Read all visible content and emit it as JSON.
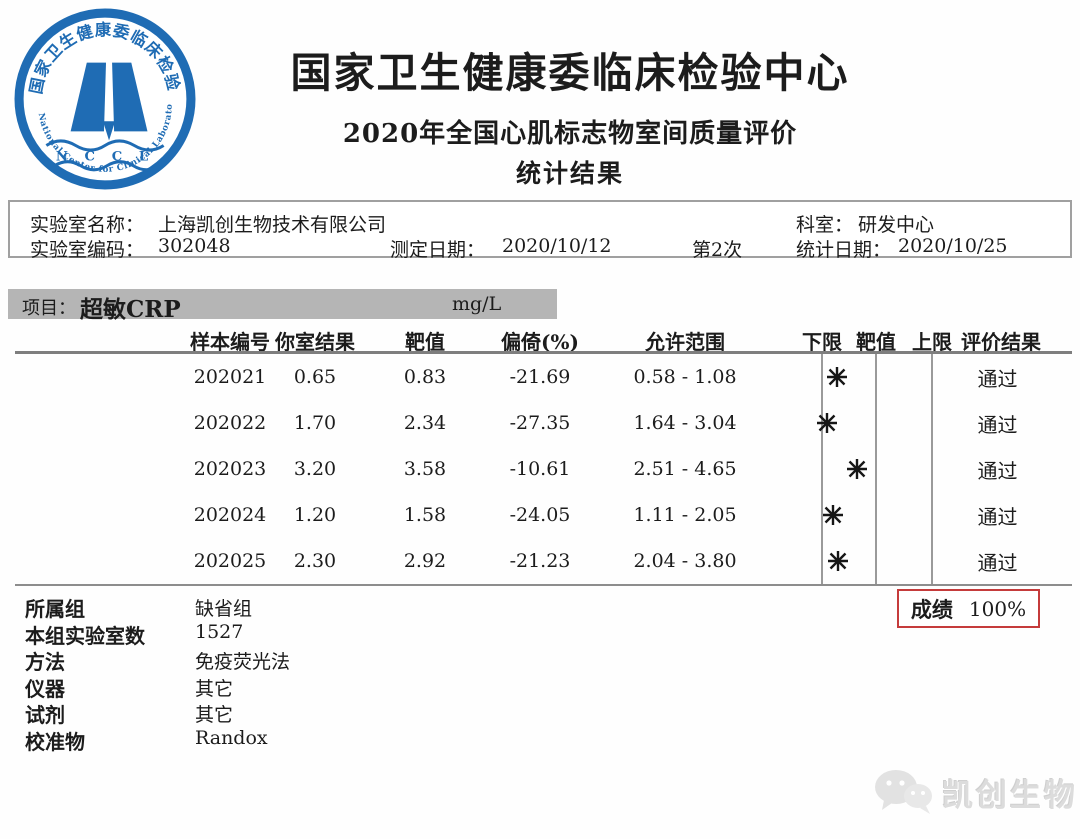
{
  "header": {
    "org_title": "国家卫生健康委临床检验中心",
    "subtitle_line1": "2020年全国心肌标志物室间质量评价",
    "subtitle_line2": "统计结果",
    "logo": {
      "ring_text_top": "国家卫生健康委临床检验中心",
      "ring_text_bottom": "National Center for Clinical Laboratories",
      "acronym": "N C C L",
      "color": "#1f6cb4"
    }
  },
  "lab_info": {
    "lab_name_label": "实验室名称：",
    "lab_name": "上海凯创生物技术有限公司",
    "lab_code_label": "实验室编码：",
    "lab_code": "302048",
    "test_date_label": "测定日期：",
    "test_date": "2020/10/12",
    "round": "第2次",
    "department_label": "科室：",
    "department": "研发中心",
    "stat_date_label": "统计日期：",
    "stat_date": "2020/10/25"
  },
  "project": {
    "label": "项目：",
    "name": "超敏CRP",
    "unit": "mg/L"
  },
  "results_table": {
    "columns": [
      "样本编号",
      "你室结果",
      "靶值",
      "偏倚(%)",
      "允许范围",
      "下限",
      "靶值",
      "上限",
      "评价结果"
    ],
    "range_separator": " - ",
    "rows": [
      {
        "sample": "202021",
        "result": 0.65,
        "target": 0.83,
        "bias": "-21.69",
        "low": 0.58,
        "high": 1.08,
        "evaluation": "通过"
      },
      {
        "sample": "202022",
        "result": 1.7,
        "target": 2.34,
        "bias": "-27.35",
        "low": 1.64,
        "high": 3.04,
        "evaluation": "通过"
      },
      {
        "sample": "202023",
        "result": 3.2,
        "target": 3.58,
        "bias": "-10.61",
        "low": 2.51,
        "high": 4.65,
        "evaluation": "通过"
      },
      {
        "sample": "202024",
        "result": 1.2,
        "target": 1.58,
        "bias": "-24.05",
        "low": 1.11,
        "high": 2.05,
        "evaluation": "通过"
      },
      {
        "sample": "202025",
        "result": 2.3,
        "target": 2.92,
        "bias": "-21.23",
        "low": 2.04,
        "high": 3.8,
        "evaluation": "通过"
      }
    ]
  },
  "summary": {
    "rows": [
      {
        "label": "所属组",
        "value": "缺省组"
      },
      {
        "label": "本组实验室数",
        "value": "1527"
      },
      {
        "label": "方法",
        "value": "免疫荧光法"
      },
      {
        "label": "仪器",
        "value": "其它"
      },
      {
        "label": "试剂",
        "value": "其它"
      },
      {
        "label": "校准物",
        "value": "Randox"
      }
    ],
    "score_label": "成绩",
    "score_value": "100%",
    "score_border_color": "#c53b3b"
  },
  "watermark": {
    "text": "凯创生物"
  }
}
